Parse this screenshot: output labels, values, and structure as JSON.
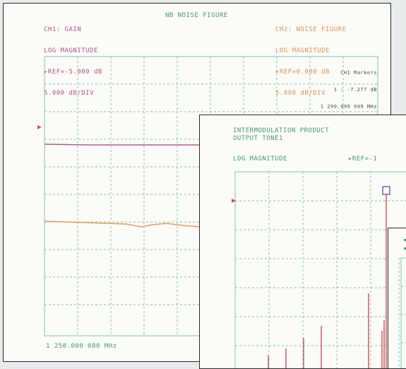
{
  "colors": {
    "ch1": "#b15486",
    "ch2": "#e0914c",
    "header": "#3f9a73",
    "grid": "#7ccaae",
    "imd_trace": "#c8505a"
  },
  "window1": {
    "ch1": {
      "line1": "CH1: GAIN",
      "line2": "LOG MAGNITUDE",
      "line3": "▸REF=-5.000 dB",
      "line4": "5.000 dB/DIV"
    },
    "title": "NB NOISE FIGURE",
    "ch2": {
      "line1": "CH2: NOISE FIGURE",
      "line2": "LOG MAGNITUDE",
      "line3": "▸REF=0.000 dB",
      "line4": "5.000 dB/DIV"
    },
    "markers": {
      "title": "CH1 Markers",
      "row1_label": "1 :",
      "row1_value": "-7.277 dB",
      "row2_value": "1 299.999 999 MHz"
    },
    "start_freq": "1 250.000 000 MHz"
  },
  "window2": {
    "line1": "INTERMODULATION PRODUCT",
    "line2": "OUTPUT TONE1",
    "line3": "LOG MAGNITUDE",
    "ref": "▸REF=-1"
  },
  "window3": {
    "visible": true
  }
}
